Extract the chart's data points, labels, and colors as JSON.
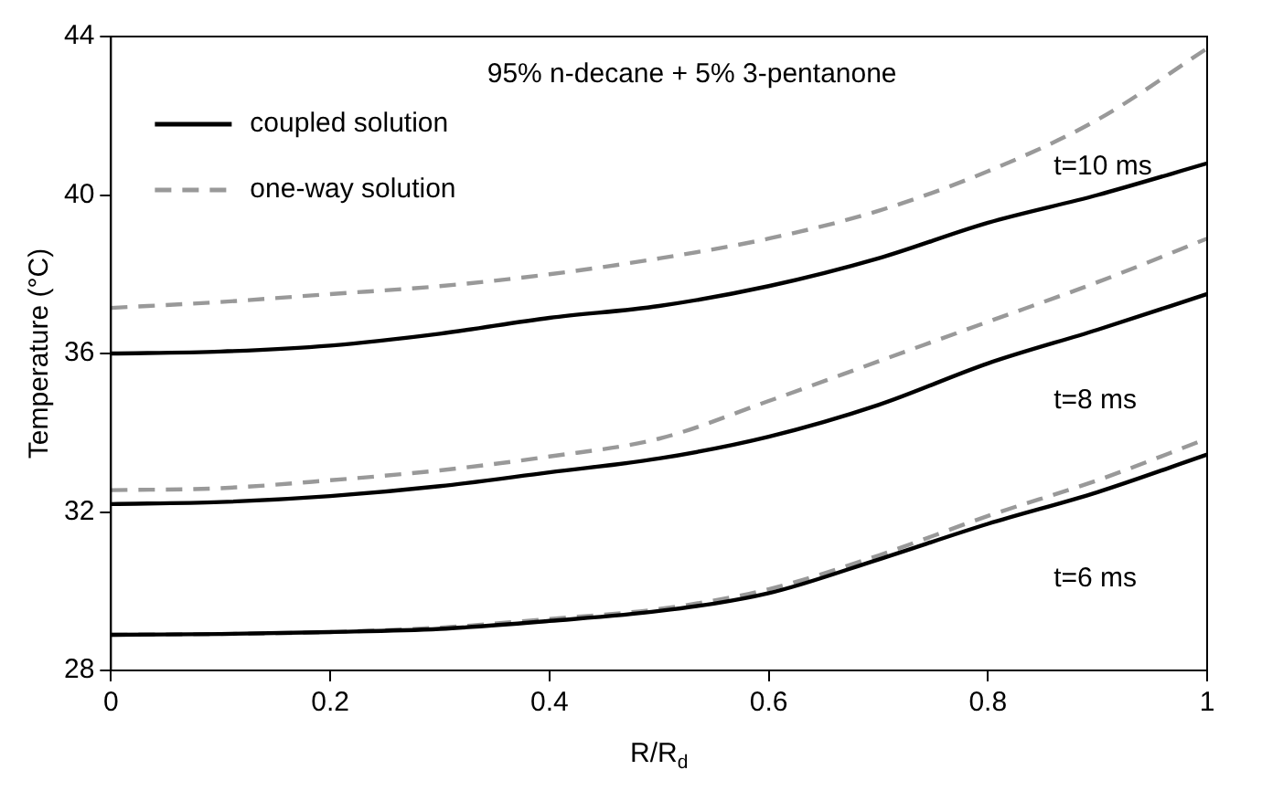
{
  "chart_data": {
    "type": "line",
    "xlabel": "R/R$_{d}$",
    "ylabel": "Temperature (°C)",
    "x": [
      0,
      0.1,
      0.2,
      0.3,
      0.4,
      0.5,
      0.6,
      0.7,
      0.8,
      0.9,
      1
    ],
    "series": [
      {
        "name": "coupled solution",
        "color": "#000000",
        "line_style": "solid",
        "values": [
          36.0,
          36.05,
          36.2,
          36.5,
          36.9,
          37.2,
          37.7,
          38.4,
          39.3,
          40.0,
          40.8
        ]
      },
      {
        "name": "one-way solution",
        "color": "#999999",
        "line_style": "dashed",
        "values": [
          37.15,
          37.3,
          37.5,
          37.7,
          38.0,
          38.4,
          38.9,
          39.6,
          40.6,
          41.9,
          43.7
        ]
      },
      {
        "color": "#000000",
        "line_style": "solid",
        "values": [
          32.2,
          32.25,
          32.4,
          32.65,
          33.0,
          33.35,
          33.9,
          34.7,
          35.75,
          36.6,
          37.5
        ]
      },
      {
        "color": "#999999",
        "line_style": "dashed",
        "values": [
          32.55,
          32.6,
          32.8,
          33.05,
          33.4,
          33.85,
          34.8,
          35.8,
          36.8,
          37.8,
          38.9
        ]
      },
      {
        "color": "#000000",
        "line_style": "solid",
        "values": [
          28.9,
          28.92,
          28.97,
          29.05,
          29.25,
          29.5,
          29.95,
          30.8,
          31.7,
          32.5,
          33.45
        ]
      },
      {
        "color": "#999999",
        "line_style": "dashed",
        "values": [
          28.9,
          28.92,
          28.97,
          29.08,
          29.3,
          29.55,
          30.05,
          30.9,
          31.9,
          32.8,
          33.85
        ]
      }
    ],
    "xlim": [
      0,
      1
    ],
    "xticks": [
      0,
      0.2,
      0.4,
      0.6,
      0.8,
      1
    ],
    "ylim": [
      28,
      44
    ],
    "yticks": [
      28,
      32,
      36,
      40,
      44
    ],
    "grid": false,
    "legend": "top left",
    "marker": "none",
    "annotations": [
      "95% n-decane + 5% 3-pentanone",
      "t=10 ms",
      "t=8 ms",
      "t=6 ms"
    ]
  }
}
